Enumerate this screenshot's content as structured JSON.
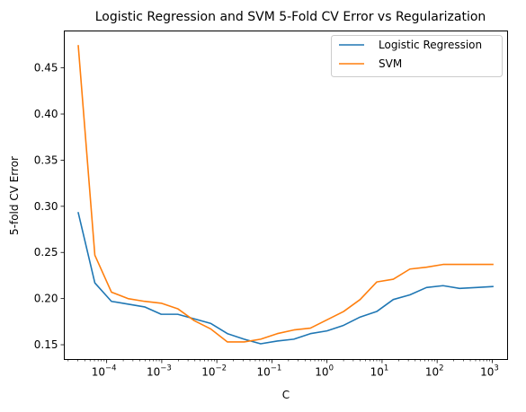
{
  "chart_data": {
    "type": "line",
    "title": "Logistic Regression and SVM 5-Fold CV Error vs Regularization",
    "xlabel": "C",
    "ylabel": "5-fold CV Error",
    "xscale": "log",
    "xlim": [
      1.7e-05,
      1900
    ],
    "ylim": [
      0.134,
      0.49
    ],
    "xticks": [
      {
        "value": 0.0001,
        "base": "10",
        "exp": "−4"
      },
      {
        "value": 0.001,
        "base": "10",
        "exp": "−3"
      },
      {
        "value": 0.01,
        "base": "10",
        "exp": "−2"
      },
      {
        "value": 0.1,
        "base": "10",
        "exp": "−1"
      },
      {
        "value": 1,
        "base": "10",
        "exp": "0"
      },
      {
        "value": 10,
        "base": "10",
        "exp": "1"
      },
      {
        "value": 100,
        "base": "10",
        "exp": "2"
      },
      {
        "value": 1000,
        "base": "10",
        "exp": "3"
      }
    ],
    "yticks": [
      {
        "value": 0.15,
        "label": "0.15"
      },
      {
        "value": 0.2,
        "label": "0.20"
      },
      {
        "value": 0.25,
        "label": "0.25"
      },
      {
        "value": 0.3,
        "label": "0.30"
      },
      {
        "value": 0.35,
        "label": "0.35"
      },
      {
        "value": 0.4,
        "label": "0.40"
      },
      {
        "value": 0.45,
        "label": "0.45"
      }
    ],
    "x": [
      3.05e-05,
      6.1e-05,
      0.000122,
      0.000244,
      0.000488,
      0.000977,
      0.00195,
      0.00391,
      0.00781,
      0.0156,
      0.0313,
      0.0625,
      0.125,
      0.25,
      0.5,
      1,
      2,
      4,
      8,
      16,
      32,
      64,
      128,
      256,
      512,
      1024
    ],
    "series": [
      {
        "name": "Logistic Regression",
        "color": "#1f77b4",
        "values": [
          0.293,
          0.217,
          0.197,
          0.194,
          0.191,
          0.183,
          0.183,
          0.178,
          0.173,
          0.162,
          0.156,
          0.151,
          0.154,
          0.156,
          0.162,
          0.165,
          0.171,
          0.18,
          0.186,
          0.199,
          0.204,
          0.212,
          0.214,
          0.211,
          0.212,
          0.213
        ]
      },
      {
        "name": "SVM",
        "color": "#ff7f0e",
        "values": [
          0.474,
          0.247,
          0.207,
          0.2,
          0.197,
          0.195,
          0.189,
          0.176,
          0.167,
          0.153,
          0.153,
          0.156,
          0.162,
          0.166,
          0.168,
          0.177,
          0.186,
          0.199,
          0.218,
          0.221,
          0.232,
          0.234,
          0.237,
          0.237,
          0.237,
          0.237
        ]
      }
    ],
    "grid": false,
    "legend_position": "top-right"
  }
}
